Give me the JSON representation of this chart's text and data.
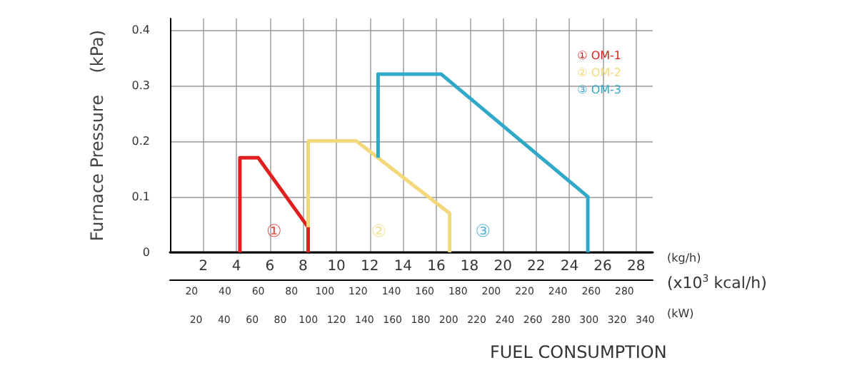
{
  "chart_data": {
    "type": "line",
    "ylabel": "Furnace Pressure    (kPa)",
    "xlabel": "FUEL CONSUMPTION",
    "xlim": [
      0,
      29
    ],
    "xticks": [
      2,
      4,
      6,
      8,
      10,
      12,
      14,
      16,
      18,
      20,
      22,
      24,
      26,
      28
    ],
    "x2label": "(x10$^{3}$ kcal/h)",
    "x2lim": [
      7,
      297
    ],
    "x2ticks": [
      20,
      40,
      60,
      80,
      100,
      120,
      140,
      160,
      180,
      200,
      220,
      240,
      260,
      280
    ],
    "ylim": [
      0,
      0.42
    ],
    "yticks": [
      0,
      0.1,
      0.2,
      0.3,
      0.4
    ],
    "grid": true,
    "legend": "top right",
    "marker": "none",
    "line_style": "solid",
    "series": [
      {
        "name": "① OM-1",
        "color": "#e02020",
        "x": [
          4.2,
          4.2,
          5.3,
          8.3,
          8.3
        ],
        "values": [
          0,
          0.17,
          0.17,
          0.045,
          0
        ]
      },
      {
        "name": "② OM-2",
        "color": "#f2d878",
        "x": [
          8.3,
          8.3,
          11.2,
          16.8,
          16.8
        ],
        "values": [
          0.045,
          0.2,
          0.2,
          0.07,
          0
        ]
      },
      {
        "name": "③ OM-3",
        "color": "#30a8c8",
        "x": [
          12.5,
          12.5,
          16.3,
          25.1,
          25.1
        ],
        "values": [
          0.17,
          0.32,
          0.32,
          0.1,
          0
        ]
      }
    ],
    "annotations": [
      "①",
      "②",
      "③",
      "(kg/h)",
      "(kW)",
      "20",
      "40",
      "60",
      "80",
      "100",
      "120",
      "140",
      "160",
      "180",
      "200",
      "220",
      "240",
      "260",
      "280",
      "300",
      "320",
      "340"
    ]
  }
}
